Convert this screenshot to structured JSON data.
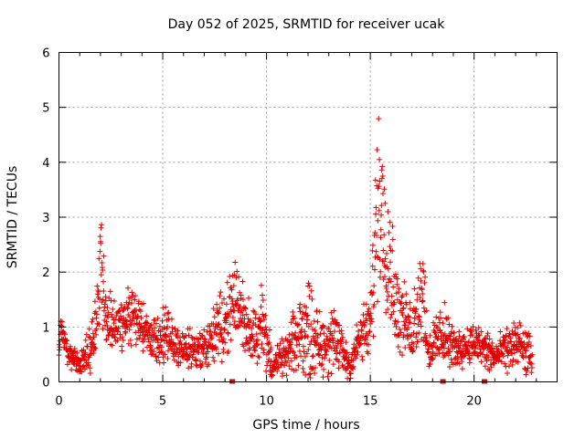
{
  "chart_data": {
    "type": "scatter",
    "marker": "plus",
    "color": "#e00000",
    "title": "Day 052 of 2025, SRMTID for receiver ucak",
    "xlabel": "GPS time / hours",
    "ylabel": "SRMTID / TECUs",
    "xlim": [
      0,
      24
    ],
    "ylim": [
      0,
      6
    ],
    "xticks": [
      0,
      5,
      10,
      15,
      20
    ],
    "yticks": [
      0,
      1,
      2,
      3,
      4,
      5,
      6
    ],
    "grid": true,
    "data_gaps_x": [
      8.35,
      18.5,
      20.5
    ],
    "series": [
      {
        "name": "SRMTID",
        "envelope": [
          {
            "t": 0.0,
            "mean": 0.55,
            "spread": 0.25
          },
          {
            "t": 0.1,
            "mean": 0.95,
            "spread": 0.15
          },
          {
            "t": 0.5,
            "mean": 0.45,
            "spread": 0.2
          },
          {
            "t": 1.0,
            "mean": 0.35,
            "spread": 0.15
          },
          {
            "t": 1.5,
            "mean": 0.6,
            "spread": 0.35
          },
          {
            "t": 1.9,
            "mean": 1.4,
            "spread": 0.5
          },
          {
            "t": 2.0,
            "mean": 2.4,
            "spread": 1.0
          },
          {
            "t": 2.3,
            "mean": 1.1,
            "spread": 0.5
          },
          {
            "t": 3.0,
            "mean": 1.0,
            "spread": 0.4
          },
          {
            "t": 3.6,
            "mean": 1.25,
            "spread": 0.5
          },
          {
            "t": 4.5,
            "mean": 0.75,
            "spread": 0.3
          },
          {
            "t": 5.0,
            "mean": 0.8,
            "spread": 0.5
          },
          {
            "t": 6.0,
            "mean": 0.6,
            "spread": 0.3
          },
          {
            "t": 7.0,
            "mean": 0.6,
            "spread": 0.3
          },
          {
            "t": 8.0,
            "mean": 1.1,
            "spread": 0.6
          },
          {
            "t": 8.5,
            "mean": 1.5,
            "spread": 0.6
          },
          {
            "t": 9.2,
            "mean": 0.9,
            "spread": 0.4
          },
          {
            "t": 9.8,
            "mean": 1.0,
            "spread": 0.7
          },
          {
            "t": 10.3,
            "mean": 0.3,
            "spread": 0.25
          },
          {
            "t": 11.0,
            "mean": 0.5,
            "spread": 0.3
          },
          {
            "t": 11.5,
            "mean": 0.8,
            "spread": 0.6
          },
          {
            "t": 12.0,
            "mean": 1.0,
            "spread": 0.8
          },
          {
            "t": 12.5,
            "mean": 0.7,
            "spread": 0.5
          },
          {
            "t": 13.5,
            "mean": 0.7,
            "spread": 0.5
          },
          {
            "t": 14.0,
            "mean": 0.3,
            "spread": 0.25
          },
          {
            "t": 14.5,
            "mean": 0.8,
            "spread": 0.4
          },
          {
            "t": 15.0,
            "mean": 1.0,
            "spread": 0.5
          },
          {
            "t": 15.4,
            "mean": 3.5,
            "spread": 1.6
          },
          {
            "t": 15.8,
            "mean": 2.6,
            "spread": 1.2
          },
          {
            "t": 16.3,
            "mean": 1.3,
            "spread": 0.6
          },
          {
            "t": 17.0,
            "mean": 0.9,
            "spread": 0.5
          },
          {
            "t": 17.5,
            "mean": 1.8,
            "spread": 0.9
          },
          {
            "t": 17.8,
            "mean": 0.55,
            "spread": 0.3
          },
          {
            "t": 18.5,
            "mean": 0.9,
            "spread": 0.5
          },
          {
            "t": 19.0,
            "mean": 0.6,
            "spread": 0.3
          },
          {
            "t": 20.0,
            "mean": 0.7,
            "spread": 0.3
          },
          {
            "t": 20.5,
            "mean": 0.6,
            "spread": 0.35
          },
          {
            "t": 21.0,
            "mean": 0.45,
            "spread": 0.25
          },
          {
            "t": 22.0,
            "mean": 0.7,
            "spread": 0.4
          },
          {
            "t": 22.8,
            "mean": 0.45,
            "spread": 0.3
          }
        ]
      }
    ]
  }
}
